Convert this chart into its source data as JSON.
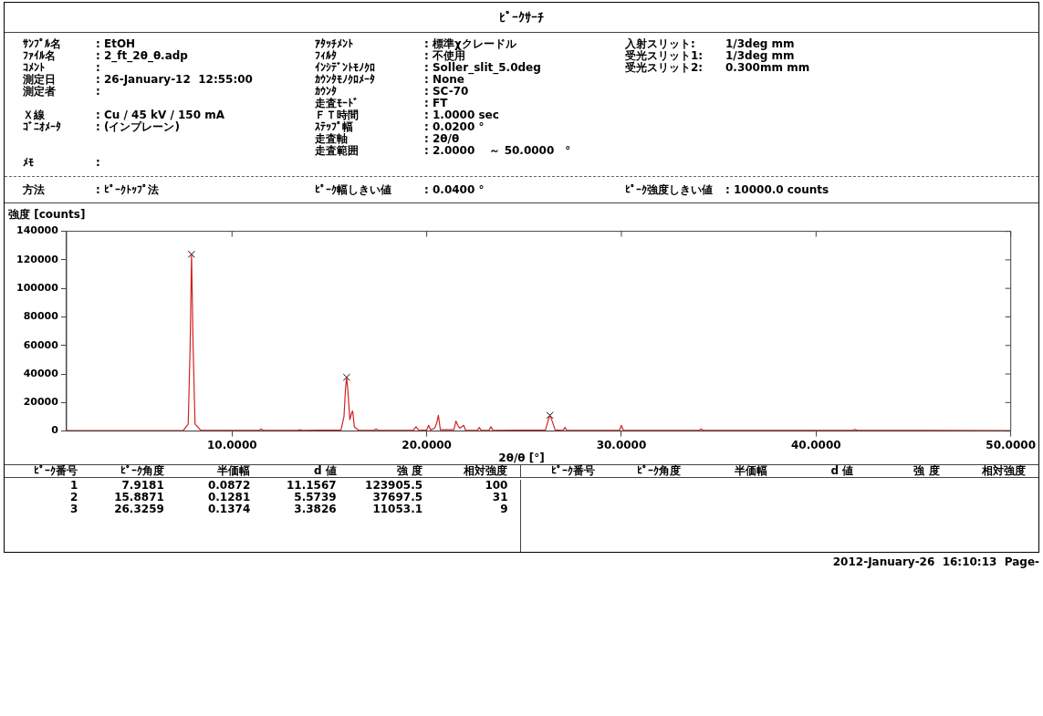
{
  "chart_data": {
    "type": "line",
    "title": "ﾋﾟｰｸｻｰﾁ",
    "xlabel": "2θ/θ [°]",
    "ylabel": "強度 [counts]",
    "xlim": [
      1.5,
      50
    ],
    "xticks": [
      {
        "value": 10,
        "label": "10.0000"
      },
      {
        "value": 20,
        "label": "20.0000"
      },
      {
        "value": 30,
        "label": "30.0000"
      },
      {
        "value": 40,
        "label": "40.0000"
      },
      {
        "value": 50,
        "label": "50.0000"
      }
    ],
    "ylim": [
      0,
      140000
    ],
    "yticks": [
      0,
      20000,
      40000,
      60000,
      80000,
      100000,
      120000,
      140000
    ],
    "grid": false,
    "legend": false,
    "series": [
      {
        "color": "#d42020",
        "marker": "none",
        "x": [
          1.5,
          7.5,
          7.75,
          7.85,
          7.92,
          8.0,
          8.1,
          8.4,
          11.4,
          11.5,
          11.6,
          13.4,
          13.5,
          13.6,
          15.6,
          15.75,
          15.83,
          15.89,
          15.97,
          16.05,
          16.15,
          16.2,
          16.28,
          16.5,
          17.3,
          17.4,
          17.5,
          19.3,
          19.45,
          19.6,
          20.0,
          20.1,
          20.2,
          20.4,
          20.5,
          20.6,
          20.7,
          21.4,
          21.5,
          21.6,
          21.7,
          21.9,
          22.0,
          22.6,
          22.7,
          22.8,
          23.2,
          23.3,
          23.4,
          26.1,
          26.25,
          26.33,
          26.42,
          26.6,
          27.0,
          27.1,
          27.2,
          29.9,
          30.0,
          30.1,
          34.0,
          34.1,
          34.2,
          41.9,
          42.0,
          42.1,
          50
        ],
        "values": [
          300,
          500,
          5000,
          60000,
          124000,
          60000,
          5000,
          500,
          500,
          1500,
          500,
          500,
          1000,
          500,
          800,
          10000,
          30000,
          37700,
          25000,
          8000,
          13000,
          14000,
          3000,
          600,
          500,
          1500,
          500,
          500,
          3000,
          500,
          800,
          4000,
          800,
          2000,
          5000,
          11000,
          1000,
          1000,
          7000,
          4000,
          2000,
          4000,
          600,
          500,
          2500,
          500,
          500,
          3000,
          500,
          800,
          8000,
          11000,
          8000,
          800,
          500,
          2500,
          500,
          500,
          4000,
          500,
          500,
          1500,
          500,
          500,
          1200,
          500,
          300
        ]
      },
      {
        "type": "scatter",
        "color": "#000000",
        "marker": "cross",
        "x": [
          7.9181,
          15.8871,
          26.3259
        ],
        "values": [
          123905.5,
          37697.5,
          11053.1
        ]
      }
    ],
    "annotations": [
      "ｻﾝﾌﾟﾙ名\t: EtOH\tｱﾀｯﾁﾒﾝﾄ\t: 標準χクレードル\t入射スリット:\t1/3deg mm",
      "ﾌｧｲﾙ名\t: 2_ft_2θ_θ.adp\tﾌｨﾙﾀ\t: 不使用\t受光スリット1:\t1/3deg mm",
      "ｺﾒﾝﾄ\t:\tｲﾝｼﾃﾞﾝﾄﾓﾉｸﾛ\t: Soller_slit_5.0deg\t受光スリット2:\t0.300mm mm",
      "測定日\t: 26-January-12  12:55:00\tｶｳﾝﾀﾓﾉｸﾛﾒｰﾀ\t: None\t\t",
      "測定者\t:\tｶｳﾝﾀ\t: SC-70\t\t",
      "\t\t走査ﾓｰﾄﾞ\t: FT\t\t",
      "Ｘ線\t: Cu / 45 kV / 150 mA\tＦＴ時間\t: 1.0000 sec\t\t",
      "ｺﾞﾆｵﾒｰﾀ\t: (インプレーン)\tｽﾃｯﾌﾟ幅\t: 0.0200 °\t\t",
      "\t\t走査軸\t: 2θ/θ\t\t",
      "\t\t走査範囲\t: 2.0000　 ～ 50.0000　°\t\t",
      "ﾒﾓ\t:\t\t\t\t",
      "方法\t: ﾋﾟｰｸﾄｯﾌﾟ法\tﾋﾟｰｸ幅しきい値\t: 0.0400 °\tﾋﾟｰｸ強度しきい値\t: 10000.0 counts",
      "ﾋﾟｰｸ番号\tﾋﾟｰｸ角度\t半価幅\td 値\t強 度\t相対強度\tﾋﾟｰｸ番号\tﾋﾟｰｸ角度\t半価幅\td 値\t強 度\t相対強度",
      "1\t7.9181\t0.0872\t11.1567\t123905.5\t100",
      "2\t15.8871\t0.1281\t5.5739\t37697.5\t31",
      "3\t26.3259\t0.1374\t3.3826\t11053.1\t9",
      "2012-January-26  16:10:13  Page-"
    ]
  }
}
